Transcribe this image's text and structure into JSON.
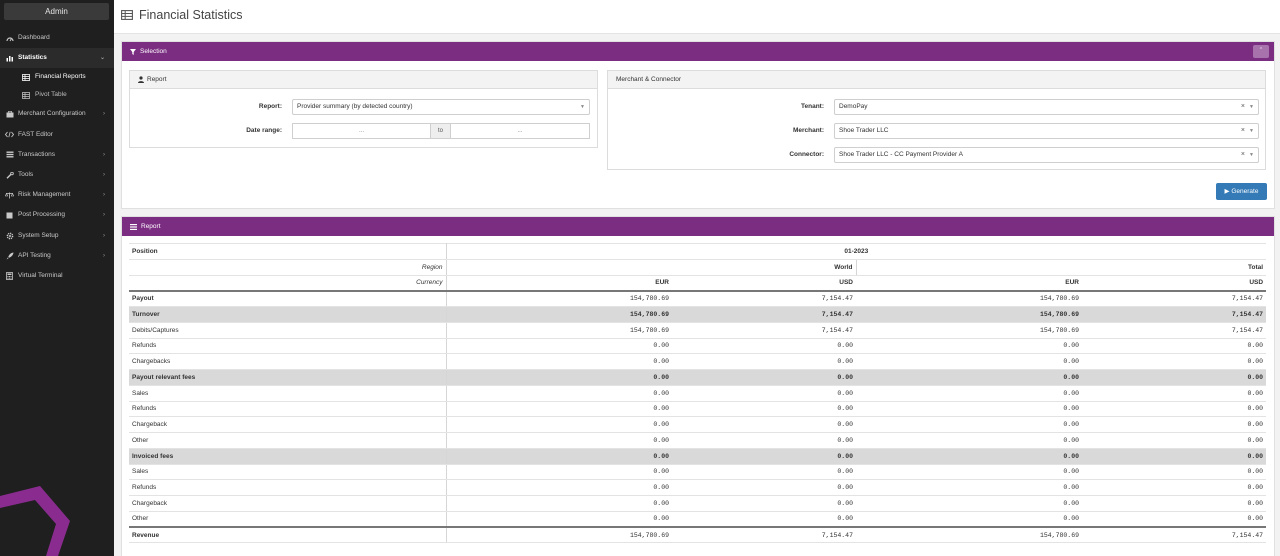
{
  "sidebar": {
    "user": "Admin",
    "items": [
      {
        "label": "Dashboard",
        "icon": "dashboard-icon"
      },
      {
        "label": "Statistics",
        "icon": "bar-chart-icon",
        "sub": [
          {
            "label": "Financial Reports",
            "icon": "table-icon"
          },
          {
            "label": "Pivot Table",
            "icon": "table-icon"
          }
        ]
      },
      {
        "label": "Merchant Configuration",
        "icon": "briefcase-icon"
      },
      {
        "label": "FAST Editor",
        "icon": "code-icon"
      },
      {
        "label": "Transactions",
        "icon": "list-icon"
      },
      {
        "label": "Tools",
        "icon": "wrench-icon"
      },
      {
        "label": "Risk Management",
        "icon": "balance-icon"
      },
      {
        "label": "Post Processing",
        "icon": "file-icon"
      },
      {
        "label": "System Setup",
        "icon": "gear-icon"
      },
      {
        "label": "API Testing",
        "icon": "rocket-icon"
      },
      {
        "label": "Virtual Terminal",
        "icon": "calculator-icon"
      }
    ]
  },
  "header": {
    "title": "Financial Statistics"
  },
  "selection": {
    "title": "Selection",
    "report_box": {
      "title": "Report",
      "report_label": "Report:",
      "report_value": "Provider summary (by detected country)",
      "date_label": "Date range:",
      "date_from": "...",
      "date_to_label": "to",
      "date_to": "..."
    },
    "merchant_box": {
      "title": "Merchant & Connector",
      "tenant_label": "Tenant:",
      "tenant_value": "DemoPay",
      "merchant_label": "Merchant:",
      "merchant_value": "Shoe Trader LLC",
      "connector_label": "Connector:",
      "connector_value": "Shoe Trader LLC - CC Payment Provider A"
    },
    "generate_label": "Generate"
  },
  "report": {
    "title": "Report",
    "position_label": "Position",
    "period": "01-2023",
    "region_label": "Region",
    "region_world": "World",
    "region_total": "Total",
    "currency_label": "Currency",
    "currencies": [
      "EUR",
      "USD",
      "EUR",
      "USD"
    ],
    "rows": [
      {
        "label": "Payout",
        "type": "bold",
        "values": [
          "154,780.69",
          "7,154.47",
          "154,780.69",
          "7,154.47"
        ]
      },
      {
        "label": "Turnover",
        "type": "group",
        "values": [
          "154,780.69",
          "7,154.47",
          "154,780.69",
          "7,154.47"
        ]
      },
      {
        "label": "Debits/Captures",
        "type": "normal",
        "values": [
          "154,780.69",
          "7,154.47",
          "154,780.69",
          "7,154.47"
        ]
      },
      {
        "label": "Refunds",
        "type": "normal",
        "values": [
          "0.00",
          "0.00",
          "0.00",
          "0.00"
        ]
      },
      {
        "label": "Chargebacks",
        "type": "normal",
        "values": [
          "0.00",
          "0.00",
          "0.00",
          "0.00"
        ]
      },
      {
        "label": "Payout relevant fees",
        "type": "group",
        "values": [
          "0.00",
          "0.00",
          "0.00",
          "0.00"
        ]
      },
      {
        "label": "Sales",
        "type": "normal",
        "values": [
          "0.00",
          "0.00",
          "0.00",
          "0.00"
        ]
      },
      {
        "label": "Refunds",
        "type": "normal",
        "values": [
          "0.00",
          "0.00",
          "0.00",
          "0.00"
        ]
      },
      {
        "label": "Chargeback",
        "type": "normal",
        "values": [
          "0.00",
          "0.00",
          "0.00",
          "0.00"
        ]
      },
      {
        "label": "Other",
        "type": "normal",
        "values": [
          "0.00",
          "0.00",
          "0.00",
          "0.00"
        ]
      },
      {
        "label": "Invoiced fees",
        "type": "group",
        "values": [
          "0.00",
          "0.00",
          "0.00",
          "0.00"
        ]
      },
      {
        "label": "Sales",
        "type": "normal",
        "values": [
          "0.00",
          "0.00",
          "0.00",
          "0.00"
        ]
      },
      {
        "label": "Refunds",
        "type": "normal",
        "values": [
          "0.00",
          "0.00",
          "0.00",
          "0.00"
        ]
      },
      {
        "label": "Chargeback",
        "type": "normal",
        "values": [
          "0.00",
          "0.00",
          "0.00",
          "0.00"
        ]
      },
      {
        "label": "Other",
        "type": "normal",
        "values": [
          "0.00",
          "0.00",
          "0.00",
          "0.00"
        ]
      },
      {
        "label": "Revenue",
        "type": "revenue",
        "values": [
          "154,780.69",
          "7,154.47",
          "154,780.69",
          "7,154.47"
        ]
      }
    ]
  },
  "colors": {
    "accent": "#7b2d82",
    "primary_button": "#337ab7",
    "sidebar": "#1f1f1f"
  }
}
